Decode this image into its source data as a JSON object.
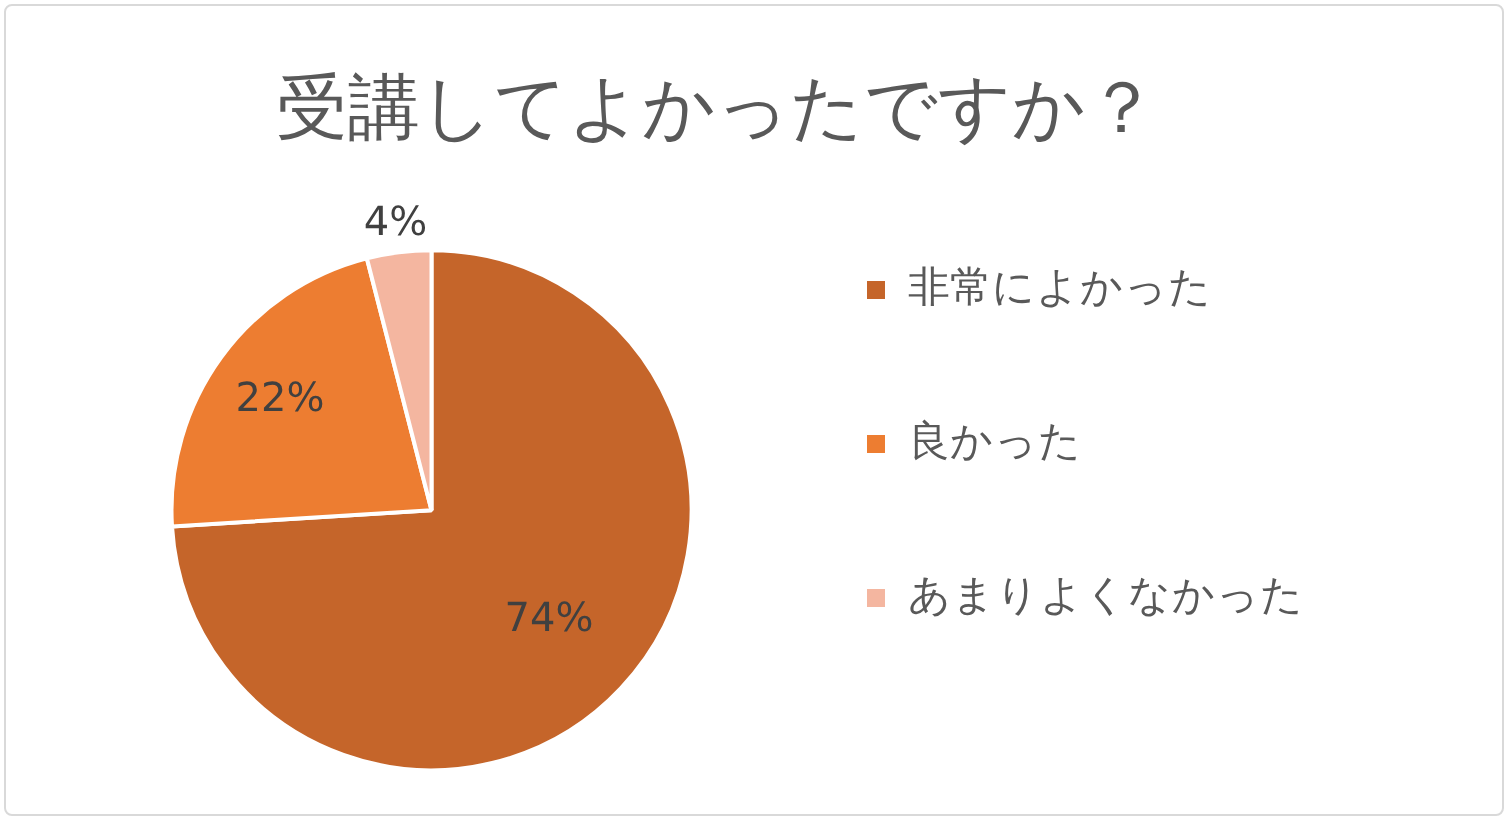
{
  "chart_data": {
    "type": "pie",
    "title": "受講してよかったですか？",
    "categories": [
      "非常によかった",
      "良かった",
      "あまりよくなかった"
    ],
    "values": [
      74,
      22,
      4
    ],
    "colors": [
      "#c5652a",
      "#ed7d31",
      "#f4b6a0"
    ],
    "value_labels": [
      "74%",
      "22%",
      "4%"
    ],
    "legend": "right"
  }
}
